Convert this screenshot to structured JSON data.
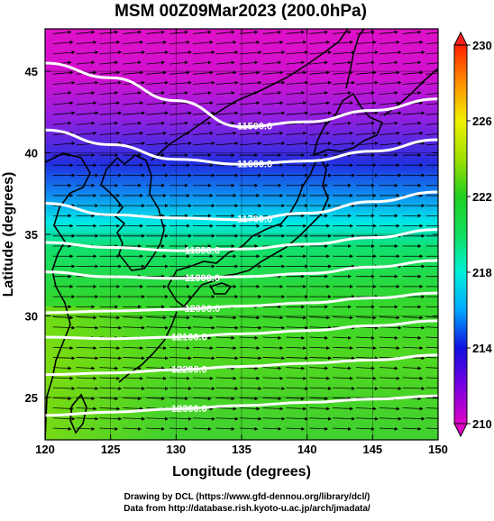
{
  "title": "MSM 00Z09Mar2023 (200.0hPa)",
  "xlabel": "Longitude (degrees)",
  "ylabel": "Latitude  (degrees)",
  "x_ticks": [
    "120",
    "125",
    "130",
    "135",
    "140",
    "145",
    "150"
  ],
  "y_ticks": [
    "25",
    "30",
    "35",
    "40",
    "45"
  ],
  "colorbar_ticks": [
    "210",
    "214",
    "218",
    "222",
    "226",
    "230"
  ],
  "colorbar_range": [
    210,
    230
  ],
  "colorbar_colors": [
    "#e000c8",
    "#7a00e0",
    "#1010e0",
    "#00a8ff",
    "#00f0d8",
    "#10e060",
    "#20d020",
    "#a0e000",
    "#f0f000",
    "#ff9000",
    "#ff2000"
  ],
  "contour_labels": [
    "11500.0",
    "11600.0",
    "11700.0",
    "11800.0",
    "11900.0",
    "12000.0",
    "12100.0",
    "12200.0",
    "12300.0"
  ],
  "credit_line1": "Drawing by DCL (https://www.gfd-dennou.org/library/dcl/)",
  "credit_line2": "Data from http://database.rish.kyoto-u.ac.jp/arch/jmadata/",
  "chart_data": {
    "type": "heatmap",
    "title": "MSM 00Z09Mar2023 (200.0hPa)",
    "xlabel": "Longitude (degrees)",
    "ylabel": "Latitude  (degrees)",
    "xlim": [
      120,
      150
    ],
    "ylim": [
      22.4,
      47.6
    ],
    "color_variable_range": [
      210,
      230
    ],
    "colorbar_ticks": [
      210,
      214,
      218,
      222,
      226,
      230
    ],
    "contours": [
      {
        "label": "11500.0",
        "lon": [
          120,
          125,
          130,
          135,
          140,
          145,
          150
        ],
        "lat": [
          45.5,
          44.6,
          43.2,
          41.6,
          41.9,
          42.6,
          43.3
        ]
      },
      {
        "label": "11600.0",
        "lon": [
          120,
          125,
          130,
          135,
          140,
          145,
          150
        ],
        "lat": [
          41.4,
          40.5,
          39.6,
          39.3,
          39.5,
          40.1,
          40.8
        ]
      },
      {
        "label": "11700.0",
        "lon": [
          120,
          125,
          130,
          135,
          140,
          145,
          150
        ],
        "lat": [
          36.9,
          36.2,
          36.0,
          35.9,
          36.3,
          37.0,
          37.6
        ]
      },
      {
        "label": "11800.0",
        "lon": [
          120,
          125,
          130,
          135,
          140,
          145,
          150
        ],
        "lat": [
          34.5,
          34.2,
          34.0,
          34.1,
          34.4,
          34.8,
          35.3
        ]
      },
      {
        "label": "11900.0",
        "lon": [
          120,
          125,
          130,
          135,
          140,
          145,
          150
        ],
        "lat": [
          32.7,
          32.4,
          32.3,
          32.4,
          32.6,
          33.0,
          33.4
        ]
      },
      {
        "label": "12000.0",
        "lon": [
          120,
          125,
          130,
          135,
          140,
          145,
          150
        ],
        "lat": [
          30.2,
          30.3,
          30.4,
          30.6,
          30.8,
          31.1,
          31.4
        ]
      },
      {
        "label": "12100.0",
        "lon": [
          120,
          125,
          130,
          135,
          140,
          145,
          150
        ],
        "lat": [
          28.7,
          28.6,
          28.7,
          28.9,
          29.1,
          29.4,
          29.7
        ]
      },
      {
        "label": "12200.0",
        "lon": [
          120,
          125,
          130,
          135,
          140,
          145,
          150
        ],
        "lat": [
          26.4,
          26.5,
          26.7,
          26.9,
          27.1,
          27.3,
          27.6
        ]
      },
      {
        "label": "12300.0",
        "lon": [
          120,
          125,
          130,
          135,
          140,
          145,
          150
        ],
        "lat": [
          23.9,
          24.1,
          24.3,
          24.5,
          24.7,
          24.9,
          25.1
        ]
      }
    ],
    "color_field_bands": [
      {
        "lat": [
          43.0,
          47.6
        ],
        "value": 210.5
      },
      {
        "lat": [
          39.0,
          43.0
        ],
        "value": 213
      },
      {
        "lat": [
          36.0,
          39.0
        ],
        "value": 216
      },
      {
        "lat": [
          34.0,
          36.0
        ],
        "value": 218.5
      },
      {
        "lat": [
          31.0,
          34.0
        ],
        "value": 220.5
      },
      {
        "lat": [
          22.4,
          31.0
        ],
        "value": 221.5
      }
    ],
    "wind_vectors": "dense eastward (west-to-east) arrows over the whole domain",
    "grid": true
  }
}
